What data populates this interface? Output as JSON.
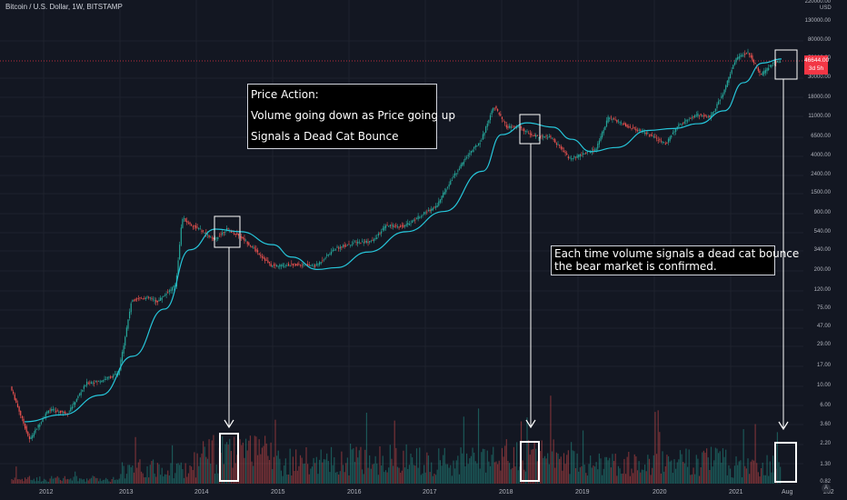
{
  "header": {
    "symbol_line": "Bitcoin / U.S. Dollar, 1W, BITSTAMP"
  },
  "price_axis": {
    "currency": "USD",
    "labels": [
      "220000.00",
      "130000.00",
      "80000.00",
      "50000.00",
      "30000.00",
      "18000.00",
      "11000.00",
      "6500.00",
      "4000.00",
      "2400.00",
      "1500.00",
      "900.00",
      "540.00",
      "340.00",
      "200.00",
      "120.00",
      "75.00",
      "47.00",
      "29.00",
      "17.00",
      "10.00",
      "6.00",
      "3.60",
      "2.20",
      "1.30",
      "0.82"
    ],
    "last_price": "46644.00",
    "countdown": "3d 5h"
  },
  "time_axis": {
    "labels": [
      "2012",
      "2013",
      "2014",
      "2015",
      "2016",
      "2017",
      "2018",
      "2019",
      "2020",
      "2021",
      "Aug",
      "202"
    ]
  },
  "annotations": {
    "box1": [
      "Price Action:",
      "Volume going down as Price going up",
      "Signals a Dead Cat Bounce"
    ],
    "box2": [
      "Each time volume signals a dead cat bounce",
      "the bear market is confirmed."
    ]
  },
  "auto_button": "A",
  "colors": {
    "up": "#26a69a",
    "down": "#ef5350",
    "ma": "#26c6da",
    "background": "#131722",
    "last_price": "#f23645"
  },
  "chart_data": {
    "type": "candlestick",
    "title": "Bitcoin / U.S. Dollar, 1W, BITSTAMP",
    "y_scale": "log",
    "ylim": [
      0.82,
      220000
    ],
    "x_range": [
      "2011-08",
      "2021-10"
    ],
    "series": [
      {
        "name": "Price",
        "x": [
          "2011-08",
          "2011-10",
          "2011-11",
          "2012-02",
          "2012-05",
          "2012-08",
          "2012-10",
          "2013-01",
          "2013-03",
          "2013-04",
          "2013-06",
          "2013-07",
          "2013-10",
          "2013-11",
          "2013-12",
          "2014-02",
          "2014-04",
          "2014-06",
          "2014-08",
          "2014-10",
          "2015-01",
          "2015-05",
          "2015-08",
          "2015-11",
          "2016-02",
          "2016-05",
          "2016-07",
          "2016-10",
          "2017-01",
          "2017-03",
          "2017-05",
          "2017-08",
          "2017-10",
          "2017-12",
          "2018-02",
          "2018-04",
          "2018-06",
          "2018-09",
          "2018-12",
          "2019-04",
          "2019-06",
          "2019-09",
          "2019-12",
          "2020-03",
          "2020-05",
          "2020-08",
          "2020-10",
          "2020-12",
          "2021-02",
          "2021-04",
          "2021-06",
          "2021-08",
          "2021-09"
        ],
        "values": [
          10,
          4,
          2.5,
          5.5,
          5,
          11,
          11.5,
          14,
          90,
          100,
          100,
          90,
          140,
          800,
          700,
          580,
          450,
          600,
          500,
          380,
          230,
          240,
          230,
          360,
          420,
          440,
          650,
          650,
          900,
          1100,
          2000,
          4200,
          6000,
          15000,
          8500,
          8500,
          6800,
          6500,
          3700,
          4800,
          11000,
          8700,
          7200,
          5500,
          9000,
          11800,
          11000,
          20000,
          50000,
          60000,
          33000,
          46000,
          46644
        ]
      },
      {
        "name": "Moving Average",
        "x": [
          "2011-10",
          "2012-04",
          "2012-10",
          "2013-03",
          "2013-08",
          "2013-12",
          "2014-04",
          "2014-08",
          "2015-01",
          "2015-04",
          "2015-08",
          "2015-11",
          "2016-04",
          "2016-10",
          "2017-04",
          "2017-10",
          "2018-01",
          "2018-05",
          "2018-09",
          "2018-12",
          "2019-03",
          "2019-07",
          "2019-12",
          "2020-04",
          "2020-08",
          "2020-12",
          "2021-03",
          "2021-06",
          "2021-09"
        ],
        "values": [
          4,
          4.8,
          8,
          22,
          75,
          350,
          600,
          560,
          400,
          290,
          210,
          220,
          330,
          560,
          950,
          2700,
          7000,
          9500,
          8500,
          6200,
          4500,
          5000,
          7800,
          8200,
          9300,
          13000,
          27000,
          45000,
          50000
        ]
      }
    ],
    "volume": {
      "x": [
        "2012",
        "2013",
        "2014",
        "2015",
        "2016",
        "2017",
        "2018",
        "2019",
        "2020",
        "2021"
      ],
      "relative": [
        0.1,
        0.3,
        0.6,
        0.45,
        0.5,
        0.45,
        0.55,
        0.4,
        0.45,
        0.35
      ]
    },
    "highlight_boxes": [
      "2014-03 to 2014-06",
      "2018-03 to 2018-06",
      "2021-08 to 2021-10"
    ]
  }
}
